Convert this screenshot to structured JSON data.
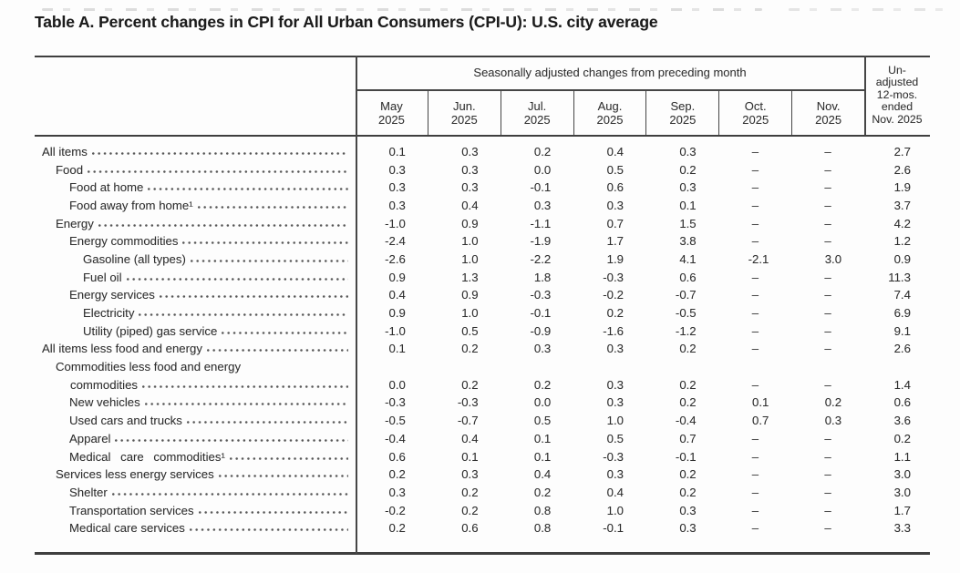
{
  "title": "Table A. Percent changes in CPI for All Urban Consumers (CPI-U): U.S. city average",
  "table": {
    "group_header": "Seasonally adjusted changes from preceding month",
    "month_columns": [
      {
        "month": "May",
        "year": "2025"
      },
      {
        "month": "Jun.",
        "year": "2025"
      },
      {
        "month": "Jul.",
        "year": "2025"
      },
      {
        "month": "Aug.",
        "year": "2025"
      },
      {
        "month": "Sep.",
        "year": "2025"
      },
      {
        "month": "Oct.",
        "year": "2025"
      },
      {
        "month": "Nov.",
        "year": "2025"
      }
    ],
    "unadjusted_column": {
      "label": "Un-adjusted 12-mos. ended Nov. 2025",
      "lines": [
        "Un-",
        "adjusted",
        "12-mos.",
        "ended",
        "Nov. 2025"
      ]
    },
    "no_data_symbol": "–",
    "rows": [
      {
        "label": "All items",
        "indent": 0,
        "values": [
          "0.1",
          "0.3",
          "0.2",
          "0.4",
          "0.3",
          "–",
          "–",
          "2.7"
        ]
      },
      {
        "label": "Food",
        "indent": 1,
        "values": [
          "0.3",
          "0.3",
          "0.0",
          "0.5",
          "0.2",
          "–",
          "–",
          "2.6"
        ]
      },
      {
        "label": "Food at home",
        "indent": 2,
        "values": [
          "0.3",
          "0.3",
          "-0.1",
          "0.6",
          "0.3",
          "–",
          "–",
          "1.9"
        ]
      },
      {
        "label": "Food away from home¹",
        "indent": 2,
        "values": [
          "0.3",
          "0.4",
          "0.3",
          "0.3",
          "0.1",
          "–",
          "–",
          "3.7"
        ]
      },
      {
        "label": "Energy",
        "indent": 1,
        "values": [
          "-1.0",
          "0.9",
          "-1.1",
          "0.7",
          "1.5",
          "–",
          "–",
          "4.2"
        ]
      },
      {
        "label": "Energy commodities",
        "indent": 2,
        "values": [
          "-2.4",
          "1.0",
          "-1.9",
          "1.7",
          "3.8",
          "–",
          "–",
          "1.2"
        ]
      },
      {
        "label": "Gasoline (all types)",
        "indent": 3,
        "values": [
          "-2.6",
          "1.0",
          "-2.2",
          "1.9",
          "4.1",
          "-2.1",
          "3.0",
          "0.9"
        ]
      },
      {
        "label": "Fuel oil",
        "indent": 3,
        "values": [
          "0.9",
          "1.3",
          "1.8",
          "-0.3",
          "0.6",
          "–",
          "–",
          "11.3"
        ]
      },
      {
        "label": "Energy services",
        "indent": 2,
        "values": [
          "0.4",
          "0.9",
          "-0.3",
          "-0.2",
          "-0.7",
          "–",
          "–",
          "7.4"
        ]
      },
      {
        "label": "Electricity",
        "indent": 3,
        "values": [
          "0.9",
          "1.0",
          "-0.1",
          "0.2",
          "-0.5",
          "–",
          "–",
          "6.9"
        ]
      },
      {
        "label": "Utility (piped) gas service",
        "indent": 3,
        "values": [
          "-1.0",
          "0.5",
          "-0.9",
          "-1.6",
          "-1.2",
          "–",
          "–",
          "9.1"
        ]
      },
      {
        "label": "All items less food and energy",
        "indent": 0,
        "values": [
          "0.1",
          "0.2",
          "0.3",
          "0.3",
          "0.2",
          "–",
          "–",
          "2.6"
        ]
      },
      {
        "label": "Commodities less food and energy",
        "label_line2": "commodities",
        "indent": 1,
        "values": [
          "0.0",
          "0.2",
          "0.2",
          "0.3",
          "0.2",
          "–",
          "–",
          "1.4"
        ]
      },
      {
        "label": "New vehicles",
        "indent": 2,
        "values": [
          "-0.3",
          "-0.3",
          "0.0",
          "0.3",
          "0.2",
          "0.1",
          "0.2",
          "0.6"
        ]
      },
      {
        "label": "Used cars and trucks",
        "indent": 2,
        "values": [
          "-0.5",
          "-0.7",
          "0.5",
          "1.0",
          "-0.4",
          "0.7",
          "0.3",
          "3.6"
        ]
      },
      {
        "label": "Apparel",
        "indent": 2,
        "values": [
          "-0.4",
          "0.4",
          "0.1",
          "0.5",
          "0.7",
          "–",
          "–",
          "0.2"
        ]
      },
      {
        "label": "Medical care commodities¹",
        "indent": 2,
        "wide_spacing": true,
        "values": [
          "0.6",
          "0.1",
          "0.1",
          "-0.3",
          "-0.1",
          "–",
          "–",
          "1.1"
        ]
      },
      {
        "label": "Services less energy services",
        "indent": 1,
        "values": [
          "0.2",
          "0.3",
          "0.4",
          "0.3",
          "0.2",
          "–",
          "–",
          "3.0"
        ]
      },
      {
        "label": "Shelter",
        "indent": 2,
        "values": [
          "0.3",
          "0.2",
          "0.2",
          "0.4",
          "0.2",
          "–",
          "–",
          "3.0"
        ]
      },
      {
        "label": "Transportation services",
        "indent": 2,
        "values": [
          "-0.2",
          "0.2",
          "0.8",
          "1.0",
          "0.3",
          "–",
          "–",
          "1.7"
        ]
      },
      {
        "label": "Medical care services",
        "indent": 2,
        "values": [
          "0.2",
          "0.6",
          "0.8",
          "-0.1",
          "0.3",
          "–",
          "–",
          "3.3"
        ]
      }
    ]
  }
}
